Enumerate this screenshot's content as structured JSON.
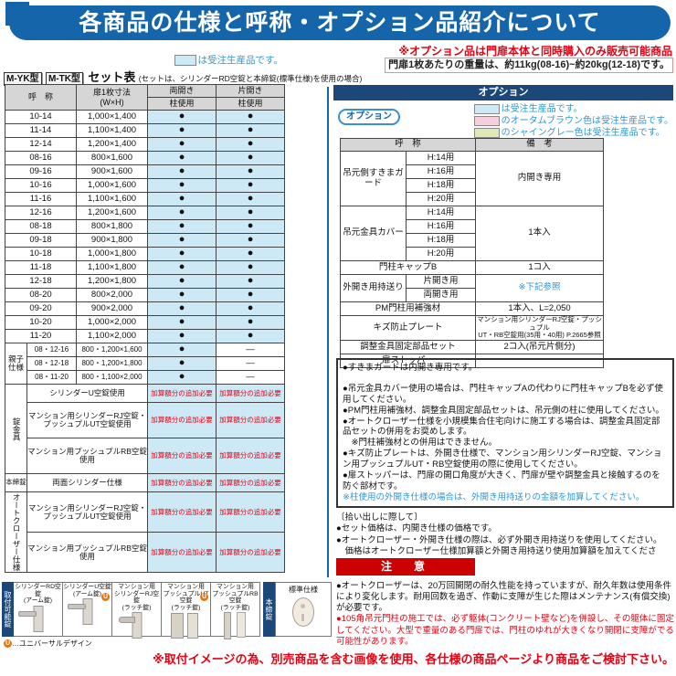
{
  "colors": {
    "banner_blue": "#1565ab",
    "navy_bar": "#1b4878",
    "made_to_order_blue": "#cde9f6",
    "autumn_brown_pink": "#f6cfdd",
    "shine_gray_green": "#dfe9b4",
    "header_gray": "#d6d6d6",
    "accent_red": "#e60012",
    "note_blue": "#2f96d2",
    "caution_red": "#cc0000"
  },
  "header": {
    "title": "各商品の仕様と呼称・オプション品紹介について",
    "option_note": "※オプション品は門扉本体と同時購入のみ販売可能商品",
    "weight_note": "門扉1枚あたりの重量は、約11kg(08-16)~約20kg(12-18)です。"
  },
  "left": {
    "legend_text": "は受注生産品です。",
    "model_badges": [
      "M-YK型",
      "M-TK型"
    ],
    "set_title": "セット表",
    "set_subtitle": "(セットは、シリンダーRD空錠と本締錠(標準仕様)を使用の場合)",
    "table": {
      "col_name": "呼　称",
      "col_size": "扉1枚寸法\n(W×H)",
      "col_double": "両開き",
      "col_single": "片開き",
      "col_pillar": "柱使用",
      "dot": "●",
      "dash": "―",
      "fee_text": "加算額分の追加必要",
      "rows": [
        {
          "code": "10-14",
          "size": "1,000×1,400"
        },
        {
          "code": "11-14",
          "size": "1,100×1,400"
        },
        {
          "code": "12-14",
          "size": "1,200×1,400"
        },
        {
          "code": "08-16",
          "size": "800×1,600"
        },
        {
          "code": "09-16",
          "size": "900×1,600"
        },
        {
          "code": "10-16",
          "size": "1,000×1,600"
        },
        {
          "code": "11-16",
          "size": "1,100×1,600"
        },
        {
          "code": "12-16",
          "size": "1,200×1,600"
        },
        {
          "code": "08-18",
          "size": "800×1,800"
        },
        {
          "code": "09-18",
          "size": "900×1,800"
        },
        {
          "code": "10-18",
          "size": "1,000×1,800"
        },
        {
          "code": "11-18",
          "size": "1,100×1,800"
        },
        {
          "code": "12-18",
          "size": "1,200×1,800"
        },
        {
          "code": "08-20",
          "size": "800×2,000"
        },
        {
          "code": "09-20",
          "size": "900×2,000"
        },
        {
          "code": "10-20",
          "size": "1,000×2,000"
        },
        {
          "code": "11-20",
          "size": "1,100×2,000"
        }
      ],
      "oyako_label": "親子\n仕様",
      "oyako_rows": [
        {
          "code": "08・12-16",
          "size": "800・1,200×1,600"
        },
        {
          "code": "08・12-18",
          "size": "800・1,200×1,800"
        },
        {
          "code": "08・11-20",
          "size": "800・1,100×2,000"
        }
      ],
      "groups": [
        {
          "label": "錠金具",
          "vertical": true,
          "rows": [
            "シリンダーU空錠使用",
            "マンション用シリンダーRJ空錠・プッシュプルUT空錠使用",
            "マンション用プッシュプルRB空錠使用"
          ]
        },
        {
          "label": "本締錠",
          "vertical": false,
          "rows": [
            "両面シリンダー仕様"
          ]
        },
        {
          "label": "オートクローザー仕様",
          "vertical": true,
          "rows": [
            "マンション用シリンダーRJ空錠・プッシュプルUT空錠使用",
            "マンション用プッシュプルRB空錠使用"
          ]
        }
      ]
    },
    "products": {
      "side_label": "取付可能錠",
      "items": [
        {
          "caption": "シリンダーRD空錠\n(アーム錠)",
          "type": "arm",
          "u": false
        },
        {
          "caption": "シリンダーU空錠\n(アーム錠)",
          "type": "arm",
          "u": true
        },
        {
          "caption": "マンション用\nシリンダーRJ空錠\n(ラッチ錠)",
          "type": "lever",
          "u": false
        },
        {
          "caption": "マンション用\nプッシュプルUT空錠\n(ラッチ錠)",
          "type": "pushpull",
          "u": true
        },
        {
          "caption": "マンション用\nプッシュプルRB空錠\n(ラッチ錠)",
          "type": "pushpull2",
          "u": false
        }
      ],
      "u_mark": "U",
      "u_note": "…ユニバーサルデザイン"
    },
    "deadbolt": {
      "side_label": "本締錠",
      "caption": "標準仕様"
    }
  },
  "right": {
    "bar_title": "オプション",
    "badge": "オプション",
    "legend": [
      {
        "text": "は受注生産品です。"
      },
      {
        "text": "のオータムブラウン色は受注生産品です。"
      },
      {
        "text": "のシャイングレー色は受注生産品です。"
      }
    ],
    "table": {
      "col_name": "呼　称",
      "col_note": "備　考",
      "rows": [
        {
          "name": "吊元側すきまガード",
          "subs": [
            "H:14用",
            "H:16用",
            "H:18用",
            "H:20用"
          ],
          "note": "内開き専用"
        },
        {
          "name": "吊元金具カバー",
          "subs": [
            "H:14用",
            "H:16用",
            "H:18用",
            "H:20用"
          ],
          "note": "1本入"
        },
        {
          "name": "門柱キャップB",
          "subs": [],
          "note": "1コ入"
        },
        {
          "name": "外開き用持送り",
          "subs": [
            "片開き用",
            "両開き用"
          ],
          "note": "※下記参照",
          "note_blue": true
        },
        {
          "name": "PM門柱用補強材",
          "subs": [],
          "note": "1本入、L=2,050"
        },
        {
          "name": "キズ防止プレート",
          "subs": [],
          "note": "マンション用シリンダーRJ空錠・プッシュプル\nUT・RB空錠用(35用・40用) P.2665参照",
          "small": true
        },
        {
          "name": "調整金具固定部品セット",
          "subs": [],
          "note": "2コ入(吊元片側分)"
        },
        {
          "name": "扉ストッパー",
          "subs": [],
          "note": ""
        }
      ]
    },
    "notes_box": [
      {
        "text": "●すきまガードは内開き専用です。",
        "gap": true
      },
      {
        "text": "●吊元金具カバー使用の場合は、門柱キャップAの代わりに門柱キャップBを必ず使用してください。"
      },
      {
        "text": "●PM門柱用補強材、調整金具固定部品セットは、吊元側の柱に使用してください。"
      },
      {
        "text": "●オートクローザー仕様を小規模集合住宅向けに施工する場合は、調整金具固定部品セットの併用をお奨めします。"
      },
      {
        "text": "　※門柱補強材との併用はできません。"
      },
      {
        "text": "●キズ防止プレートは、外開き仕様で、マンション用シリンダーRJ空錠、マンション用プッシュプルUT・RB空錠使用の際に使用してください。"
      },
      {
        "text": "●扉ストッパーは、門扉の開口角度が大きく、門扉が壁や調整金具と接触するのを防ぐ部材です。"
      },
      {
        "text": "※柱使用の外開き仕様の場合は、外開き用持送りの金額を加算してください。",
        "blue": true
      }
    ],
    "pickup": {
      "title": "〔拾い出しに際して〕",
      "lines": [
        "●セット価格は、内開き仕様の価格です。",
        "●オートクローザー・外開き仕様の際は、必ず外開き用持送りを使用してください。",
        "　価格はオートクローザー仕様加算額と外開き用持送り使用加算額を加えてください。"
      ]
    },
    "caution": {
      "title": "注　意",
      "items": [
        {
          "text": "●オートクローザーは、20万回開閉の耐久性能を持っていますが、耐久年数は使用条件により変化します。耐用回数を過ぎ、作動に支障が生じた際はメンテナンス(有償交換)が必要です。",
          "red": false
        },
        {
          "text": "●105角吊元門柱の施工では、必ず躯体(コンクリート壁など)を併設し、その躯体に固定してください。大型で重量のある門扉では、門柱のゆれが大きくなり開閉に支障がでる可能性があります。",
          "red": true
        }
      ]
    }
  },
  "footer": {
    "note": "※取付イメージの為、別売商品を含む画像を使用、各仕様の商品ページより商品をご検討下さい。"
  }
}
